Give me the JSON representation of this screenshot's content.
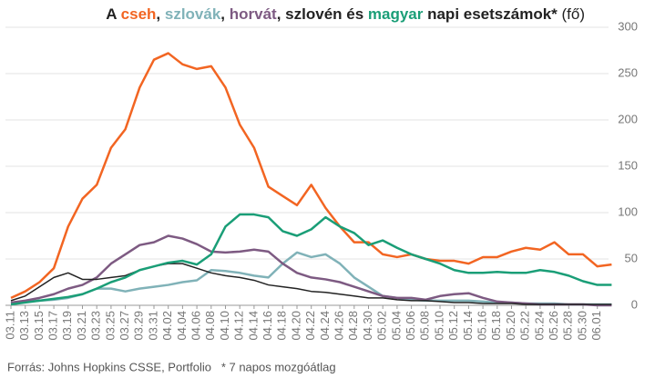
{
  "chart_data": {
    "type": "line",
    "title_parts": [
      "A ",
      ", ",
      ", ",
      ", ",
      " és ",
      " napi esetszámok* ",
      "(fő)"
    ],
    "source": "Forrás: Johns Hopkins CSSE, Portfolio   * 7 napos mozgóátlag",
    "categories": [
      "03.11",
      "03.13",
      "03.15",
      "03.17",
      "03.19",
      "03.21",
      "03.23",
      "03.25",
      "03.27",
      "03.29",
      "03.31",
      "04.02",
      "04.04",
      "04.06",
      "04.08",
      "04.10",
      "04.12",
      "04.14",
      "04.16",
      "04.18",
      "04.20",
      "04.22",
      "04.24",
      "04.26",
      "04.28",
      "04.30",
      "05.02",
      "05.04",
      "05.06",
      "05.08",
      "05.10",
      "05.12",
      "05.14",
      "05.16",
      "05.18",
      "05.20",
      "05.22",
      "05.24",
      "05.26",
      "05.28",
      "05.30",
      "06.01",
      null
    ],
    "series": [
      {
        "name": "cseh",
        "color": "#f26522",
        "values": [
          8,
          15,
          25,
          40,
          85,
          115,
          130,
          170,
          190,
          235,
          265,
          272,
          260,
          255,
          258,
          235,
          195,
          170,
          128,
          118,
          108,
          130,
          105,
          85,
          68,
          68,
          55,
          52,
          55,
          50,
          48,
          48,
          45,
          52,
          52,
          58,
          62,
          60,
          68,
          55,
          55,
          42,
          44
        ]
      },
      {
        "name": "szlovák",
        "color": "#80b2b8",
        "values": [
          2,
          4,
          5,
          6,
          8,
          12,
          18,
          18,
          15,
          18,
          20,
          22,
          25,
          27,
          38,
          37,
          35,
          32,
          30,
          45,
          57,
          52,
          55,
          45,
          30,
          20,
          10,
          8,
          6,
          5,
          5,
          5,
          5,
          4,
          3,
          3,
          2,
          2,
          2,
          1,
          1,
          1,
          1
        ]
      },
      {
        "name": "horvát",
        "color": "#7d5a82",
        "values": [
          3,
          5,
          8,
          12,
          18,
          22,
          30,
          45,
          55,
          65,
          68,
          75,
          72,
          66,
          58,
          57,
          58,
          60,
          58,
          45,
          35,
          30,
          28,
          25,
          20,
          15,
          10,
          8,
          8,
          6,
          10,
          12,
          13,
          8,
          4,
          3,
          2,
          1,
          1,
          1,
          1,
          0,
          0
        ]
      },
      {
        "name": "szlovén",
        "color": "#222222",
        "values": [
          5,
          10,
          20,
          30,
          35,
          28,
          28,
          30,
          32,
          38,
          42,
          45,
          45,
          40,
          35,
          32,
          30,
          27,
          22,
          20,
          18,
          15,
          14,
          12,
          10,
          8,
          8,
          6,
          5,
          5,
          4,
          3,
          3,
          2,
          2,
          2,
          1,
          1,
          1,
          1,
          1,
          1,
          1
        ]
      },
      {
        "name": "magyar",
        "color": "#1a9e77",
        "values": [
          1,
          3,
          5,
          7,
          9,
          12,
          18,
          25,
          30,
          38,
          42,
          46,
          48,
          44,
          55,
          85,
          98,
          98,
          95,
          80,
          75,
          82,
          95,
          85,
          78,
          65,
          70,
          62,
          55,
          50,
          45,
          38,
          35,
          35,
          36,
          35,
          35,
          38,
          36,
          32,
          26,
          22,
          22
        ]
      }
    ],
    "ylim": [
      0,
      300
    ],
    "yticks": [
      0,
      50,
      100,
      150,
      200,
      250,
      300
    ],
    "grid": true
  }
}
